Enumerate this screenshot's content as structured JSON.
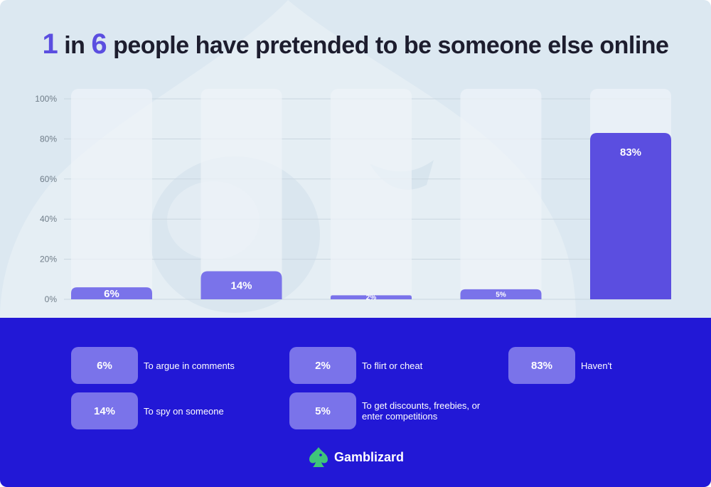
{
  "title": {
    "n1": "1",
    "w1": " in ",
    "n2": "6",
    "w2": " people have pretended to be someone else online"
  },
  "chart_data": {
    "type": "bar",
    "categories": [
      "To argue in comments",
      "To spy on someone",
      "To flirt or cheat",
      "To get discounts, freebies, or enter competitions",
      "Haven't"
    ],
    "values": [
      6,
      14,
      2,
      5,
      83
    ],
    "data_labels": [
      "6%",
      "14%",
      "2%",
      "5%",
      "83%"
    ],
    "ylim": [
      0,
      100
    ],
    "yticks": [
      "0%",
      "20%",
      "40%",
      "60%",
      "80%",
      "100%"
    ],
    "grid": true,
    "colors": {
      "bar": "#5b4ee0",
      "bar_light": "#7a73ea",
      "track": "#edf3f8"
    }
  },
  "legend": [
    {
      "value": "6%",
      "label": "To argue in comments"
    },
    {
      "value": "14%",
      "label": "To spy on someone"
    },
    {
      "value": "2%",
      "label": "To flirt or cheat"
    },
    {
      "value": "5%",
      "label": "To get discounts, freebies, or enter competitions"
    },
    {
      "value": "83%",
      "label": "Haven't"
    }
  ],
  "brand": {
    "name": "Gamblizard",
    "icon": "spade-lizard-icon",
    "color": "#3fc47a"
  },
  "theme": {
    "top_bg": "#dce8f1",
    "bottom_bg": "#2218d6"
  }
}
